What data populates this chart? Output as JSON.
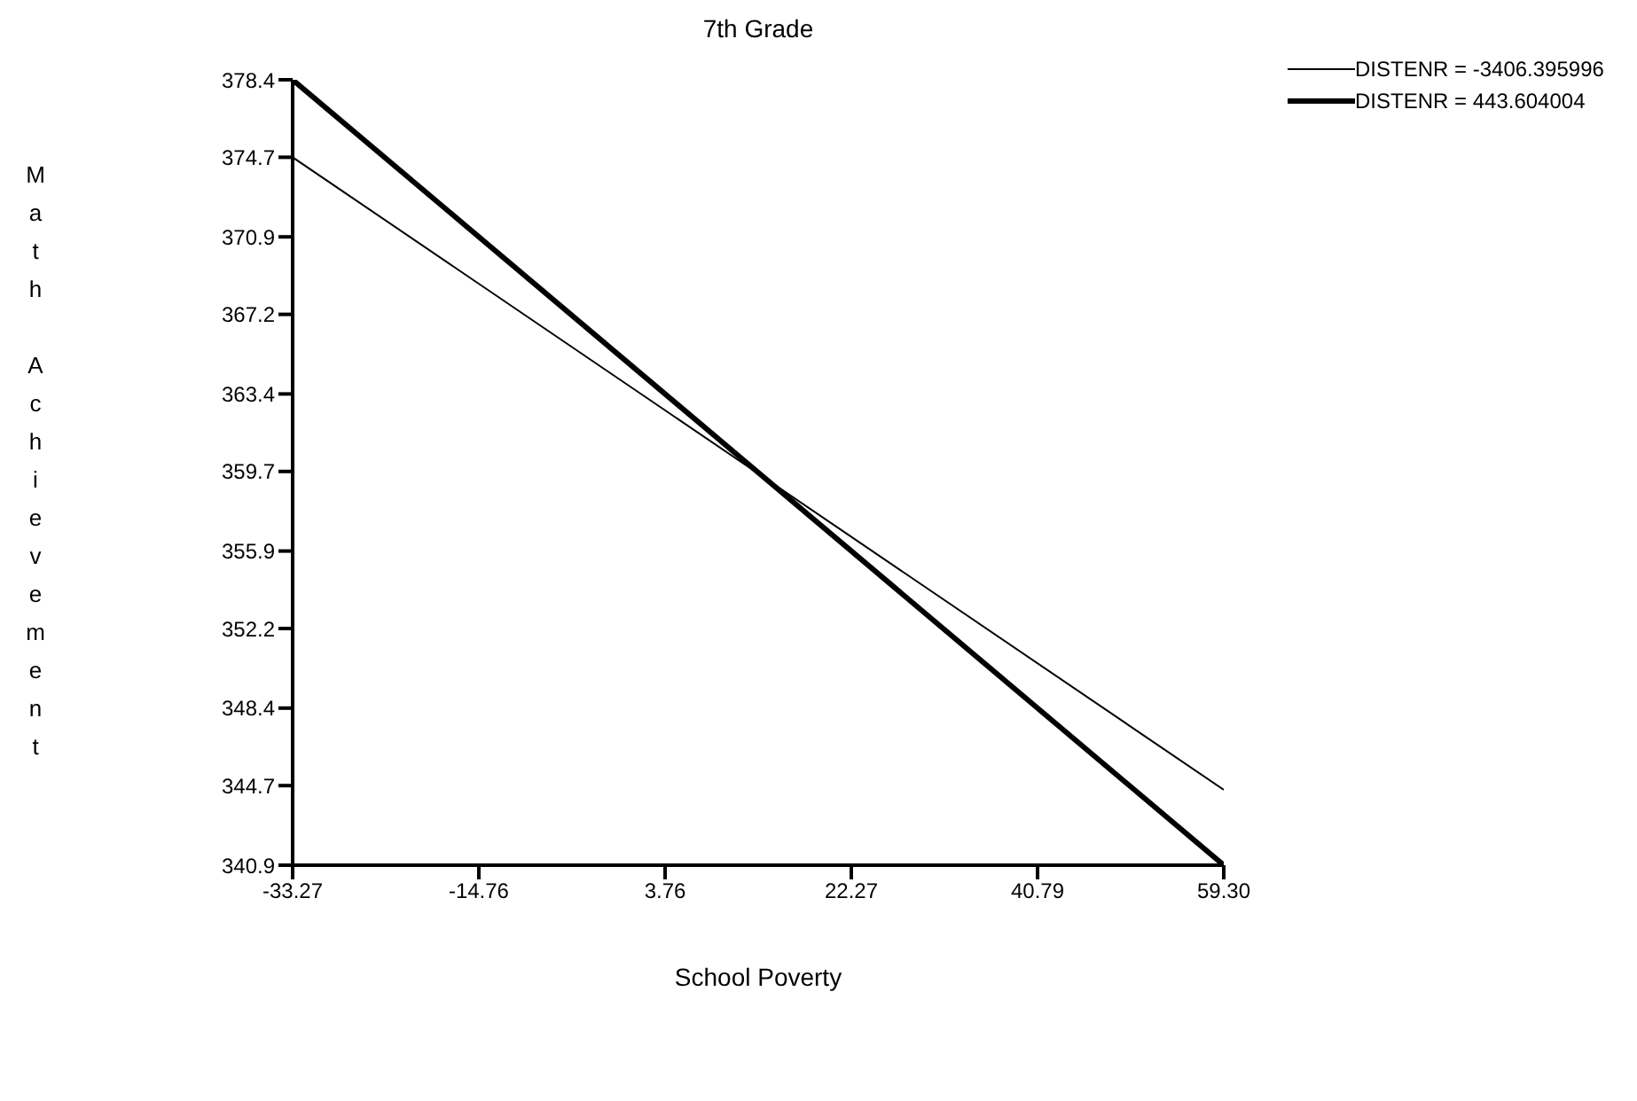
{
  "chart_data": {
    "type": "line",
    "title": "7th Grade",
    "xlabel": "School Poverty",
    "ylabel": "Math Achievement",
    "x": [
      -33.27,
      59.3
    ],
    "series": [
      {
        "name": "DISTENR = -3406.395996",
        "color": "#000000",
        "values": [
          374.7,
          344.5
        ]
      },
      {
        "name": "DISTENR = 443.604004",
        "color": "#000000",
        "values": [
          378.4,
          340.9
        ]
      }
    ],
    "xlim": [
      -33.27,
      59.3
    ],
    "xticks": [
      -33.27,
      -14.76,
      3.76,
      22.27,
      40.79,
      {
        "value": 59.3,
        "label": "59.30"
      }
    ],
    "ylim": [
      340.9,
      378.4
    ],
    "yticks": [
      340.9,
      344.7,
      348.4,
      352.2,
      355.9,
      359.7,
      363.4,
      367.2,
      370.9,
      374.7,
      378.4
    ],
    "grid": false,
    "legend": "top right",
    "marker": "none",
    "line_style": "solid"
  }
}
